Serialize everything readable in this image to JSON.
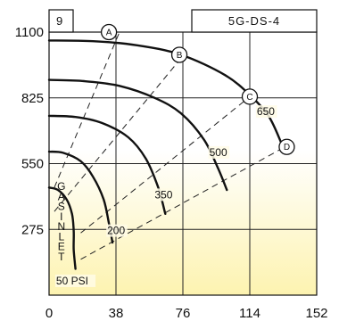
{
  "chart_data": {
    "type": "line",
    "title": "",
    "panel_number": "9",
    "panel_code": "5G-DS-4",
    "xlabel": "",
    "ylabel": "",
    "x_ticks": [
      "0",
      "38",
      "76",
      "114",
      "152"
    ],
    "y_ticks": [
      "1100",
      "825",
      "550",
      "275"
    ],
    "xlim": [
      0,
      152
    ],
    "ylim": [
      0,
      1100
    ],
    "grid": true,
    "background": {
      "top": "#ffffff",
      "bottom": "#fdf3b0"
    },
    "series": [
      {
        "name": "650",
        "points": [
          [
            0,
            1065
          ],
          [
            25,
            1062
          ],
          [
            50,
            1045
          ],
          [
            75,
            1005
          ],
          [
            100,
            920
          ],
          [
            115,
            830
          ],
          [
            125,
            745
          ],
          [
            132,
            635
          ]
        ]
      },
      {
        "name": "500",
        "points": [
          [
            0,
            900
          ],
          [
            20,
            895
          ],
          [
            40,
            875
          ],
          [
            60,
            825
          ],
          [
            75,
            760
          ],
          [
            88,
            650
          ],
          [
            96,
            530
          ],
          [
            101,
            440
          ]
        ]
      },
      {
        "name": "350",
        "points": [
          [
            0,
            750
          ],
          [
            15,
            745
          ],
          [
            30,
            720
          ],
          [
            45,
            660
          ],
          [
            55,
            570
          ],
          [
            62,
            450
          ],
          [
            66,
            340
          ]
        ]
      },
      {
        "name": "200",
        "points": [
          [
            0,
            600
          ],
          [
            8,
            595
          ],
          [
            18,
            560
          ],
          [
            25,
            495
          ],
          [
            31,
            400
          ],
          [
            34,
            300
          ],
          [
            36,
            220
          ]
        ]
      },
      {
        "name": "50 PSI",
        "points": [
          [
            0,
            450
          ],
          [
            5,
            440
          ],
          [
            10,
            400
          ],
          [
            13,
            340
          ],
          [
            14,
            270
          ],
          [
            14,
            190
          ],
          [
            15,
            110
          ]
        ]
      }
    ],
    "series_labels": [
      {
        "series": "650",
        "text": "650",
        "x": 118,
        "y": 753
      },
      {
        "series": "500",
        "text": "500",
        "x": 91,
        "y": 582
      },
      {
        "series": "350",
        "text": "350",
        "x": 60,
        "y": 405
      },
      {
        "series": "200",
        "text": "200",
        "x": 33,
        "y": 255
      },
      {
        "series": "50 PSI",
        "text": "50 PSI",
        "x": 4,
        "y": 45
      }
    ],
    "dashed_lines": [
      {
        "name": "A",
        "points": [
          [
            3,
            450
          ],
          [
            40,
            1100
          ]
        ]
      },
      {
        "name": "B",
        "points": [
          [
            3,
            350
          ],
          [
            76,
            1000
          ]
        ]
      },
      {
        "name": "C",
        "points": [
          [
            18,
            260
          ],
          [
            114,
            830
          ]
        ]
      },
      {
        "name": "D",
        "points": [
          [
            18,
            150
          ],
          [
            134,
            620
          ]
        ]
      }
    ],
    "markers": [
      {
        "text": "A",
        "x": 34,
        "y": 1100
      },
      {
        "text": "B",
        "x": 74,
        "y": 1005
      },
      {
        "text": "C",
        "x": 114,
        "y": 830
      },
      {
        "text": "D",
        "x": 135,
        "y": 620
      }
    ],
    "annotation": {
      "text": [
        "G",
        "A",
        "S",
        "I",
        "N",
        "L",
        "E",
        "T"
      ],
      "x": 7,
      "y_top": 440,
      "y_step": 42
    }
  }
}
